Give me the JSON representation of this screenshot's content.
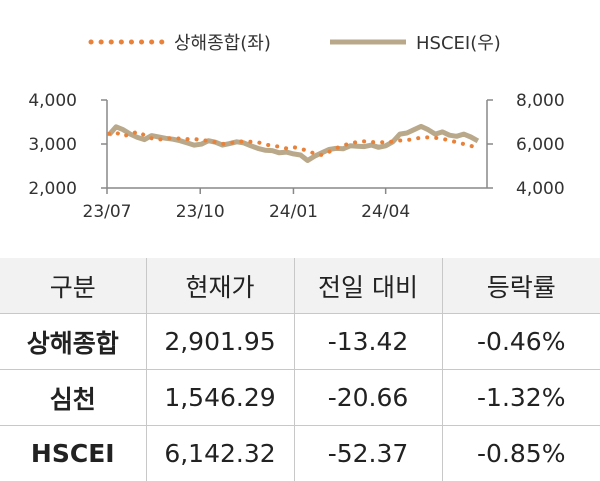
{
  "chart_data": {
    "type": "line",
    "series": [
      {
        "name": "상해종합(좌)",
        "axis": "left",
        "color": "#e8823a",
        "style": "dotted",
        "x": [
          "2023-07-03",
          "2023-07-10",
          "2023-07-17",
          "2023-07-24",
          "2023-07-31",
          "2023-08-07",
          "2023-08-14",
          "2023-08-21",
          "2023-08-28",
          "2023-09-04",
          "2023-09-11",
          "2023-09-18",
          "2023-09-25",
          "2023-10-02",
          "2023-10-09",
          "2023-10-16",
          "2023-10-23",
          "2023-10-30",
          "2023-11-06",
          "2023-11-13",
          "2023-11-20",
          "2023-11-27",
          "2023-12-04",
          "2023-12-11",
          "2023-12-18",
          "2023-12-25",
          "2024-01-01",
          "2024-01-08",
          "2024-01-15",
          "2024-01-22",
          "2024-01-29",
          "2024-02-05",
          "2024-02-12",
          "2024-02-19",
          "2024-02-26",
          "2024-03-04",
          "2024-03-11",
          "2024-03-18",
          "2024-03-25",
          "2024-04-01",
          "2024-04-08",
          "2024-04-15",
          "2024-04-22",
          "2024-04-29",
          "2024-05-06",
          "2024-05-13",
          "2024-05-20",
          "2024-05-27",
          "2024-06-03",
          "2024-06-10",
          "2024-06-17",
          "2024-06-24",
          "2024-07-01"
        ],
        "values": [
          3230,
          3260,
          3180,
          3220,
          3280,
          3200,
          3130,
          3100,
          3120,
          3140,
          3120,
          3110,
          3120,
          3080,
          3080,
          3040,
          3000,
          3020,
          3050,
          3060,
          3050,
          3040,
          2990,
          2960,
          2940,
          2900,
          2930,
          2890,
          2850,
          2780,
          2750,
          2820,
          2900,
          2970,
          3010,
          3050,
          3060,
          3040,
          3050,
          3030,
          3060,
          3080,
          3090,
          3110,
          3150,
          3150,
          3140,
          3120,
          3080,
          3040,
          3000,
          2960,
          2900
        ]
      },
      {
        "name": "HSCEI(우)",
        "axis": "right",
        "color": "#b9a98a",
        "style": "solid",
        "x": [
          "2023-07-03",
          "2023-07-10",
          "2023-07-17",
          "2023-07-24",
          "2023-07-31",
          "2023-08-07",
          "2023-08-14",
          "2023-08-21",
          "2023-08-28",
          "2023-09-04",
          "2023-09-11",
          "2023-09-18",
          "2023-09-25",
          "2023-10-02",
          "2023-10-09",
          "2023-10-16",
          "2023-10-23",
          "2023-10-30",
          "2023-11-06",
          "2023-11-13",
          "2023-11-20",
          "2023-11-27",
          "2023-12-04",
          "2023-12-11",
          "2023-12-18",
          "2023-12-25",
          "2024-01-01",
          "2024-01-08",
          "2024-01-15",
          "2024-01-22",
          "2024-01-29",
          "2024-02-05",
          "2024-02-12",
          "2024-02-19",
          "2024-02-26",
          "2024-03-04",
          "2024-03-11",
          "2024-03-18",
          "2024-03-25",
          "2024-04-01",
          "2024-04-08",
          "2024-04-15",
          "2024-04-22",
          "2024-04-29",
          "2024-05-06",
          "2024-05-13",
          "2024-05-20",
          "2024-05-27",
          "2024-06-03",
          "2024-06-10",
          "2024-06-17",
          "2024-06-24",
          "2024-07-01"
        ],
        "values": [
          6420,
          6780,
          6650,
          6450,
          6300,
          6200,
          6380,
          6320,
          6260,
          6220,
          6150,
          6050,
          5950,
          5990,
          6150,
          6080,
          5950,
          6020,
          6100,
          6050,
          5920,
          5800,
          5720,
          5700,
          5600,
          5630,
          5550,
          5500,
          5250,
          5450,
          5600,
          5750,
          5800,
          5780,
          5920,
          5900,
          5880,
          5950,
          5850,
          5920,
          6100,
          6450,
          6500,
          6650,
          6800,
          6650,
          6450,
          6550,
          6400,
          6350,
          6450,
          6320,
          6140
        ]
      }
    ],
    "x_ticks": [
      "23/07",
      "23/10",
      "24/01",
      "24/04"
    ],
    "y_left": {
      "range": [
        2000,
        4000
      ],
      "ticks": [
        "2,000",
        "3,000",
        "4,000"
      ]
    },
    "y_right": {
      "range": [
        4000,
        8000
      ],
      "ticks": [
        "4,000",
        "6,000",
        "8,000"
      ]
    },
    "x_range": [
      "2023-07-01",
      "2024-07-10"
    ],
    "grid": false,
    "legend_position": "top"
  },
  "legend": [
    {
      "label": "상해종합(좌)",
      "color": "#e8823a",
      "style": "dotted"
    },
    {
      "label": "HSCEI(우)",
      "color": "#b9a98a",
      "style": "solid"
    }
  ],
  "table": {
    "headers": [
      "구분",
      "현재가",
      "전일 대비",
      "등락률"
    ],
    "rows": [
      [
        "상해종합",
        "2,901.95",
        "-13.42",
        "-0.46%"
      ],
      [
        "심천",
        "1,546.29",
        "-20.66",
        "-1.32%"
      ],
      [
        "HSCEI",
        "6,142.32",
        "-52.37",
        "-0.85%"
      ]
    ]
  }
}
